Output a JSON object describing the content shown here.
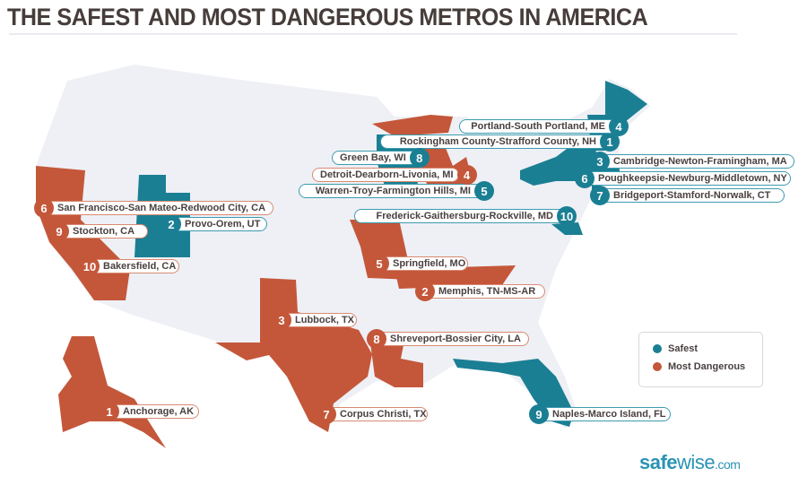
{
  "title": "THE SAFEST AND MOST DANGEROUS METROS IN AMERICA",
  "colors": {
    "safest": "#1b7f94",
    "dangerous": "#c4573a",
    "land": "#eef0f5"
  },
  "legend": {
    "safest": "Safest",
    "dangerous": "Most Dangerous"
  },
  "logo": {
    "bold": "safe",
    "thin": "wise",
    "suffix": ".com"
  },
  "safest": [
    {
      "rank": "1",
      "name": "Rockingham County-Strafford County, NH"
    },
    {
      "rank": "2",
      "name": "Provo-Orem, UT"
    },
    {
      "rank": "3",
      "name": "Cambridge-Newton-Framingham, MA"
    },
    {
      "rank": "4",
      "name": "Portland-South Portland, ME"
    },
    {
      "rank": "5",
      "name": "Warren-Troy-Farmington Hills, MI"
    },
    {
      "rank": "6",
      "name": "Poughkeepsie-Newburg-Middletown, NY"
    },
    {
      "rank": "7",
      "name": "Bridgeport-Stamford-Norwalk, CT"
    },
    {
      "rank": "8",
      "name": "Green Bay, WI"
    },
    {
      "rank": "9",
      "name": "Naples-Marco Island, FL"
    },
    {
      "rank": "10",
      "name": "Frederick-Gaithersburg-Rockville, MD"
    }
  ],
  "dangerous": [
    {
      "rank": "1",
      "name": "Anchorage, AK"
    },
    {
      "rank": "2",
      "name": "Memphis, TN-MS-AR"
    },
    {
      "rank": "3",
      "name": "Lubbock, TX"
    },
    {
      "rank": "4",
      "name": "Detroit-Dearborn-Livonia, MI"
    },
    {
      "rank": "5",
      "name": "Springfield, MO"
    },
    {
      "rank": "6",
      "name": "San Francisco-San Mateo-Redwood City, CA"
    },
    {
      "rank": "7",
      "name": "Corpus Christi, TX"
    },
    {
      "rank": "8",
      "name": "Shreveport-Bossier City, LA"
    },
    {
      "rank": "9",
      "name": "Stockton, CA"
    },
    {
      "rank": "10",
      "name": "Bakersfield, CA"
    }
  ]
}
